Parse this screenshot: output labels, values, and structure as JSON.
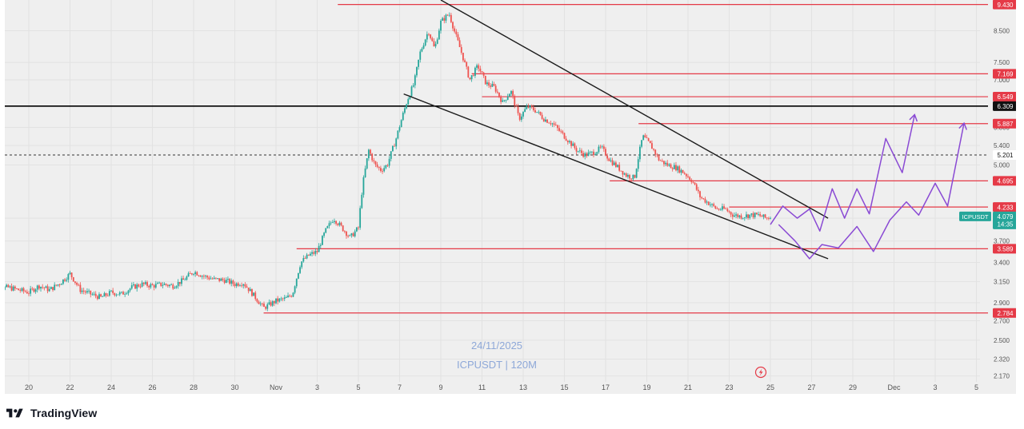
{
  "brand": {
    "name": "TradingView",
    "logo_icon": "tradingview-logo-icon"
  },
  "colors": {
    "background": "#efefef",
    "grid": "#e2e2e2",
    "candle_up": "#26a69a",
    "candle_down": "#ef5350",
    "level_line": "#e53a47",
    "wedge_line": "#1c1c1c",
    "projection": "#8a4ad4",
    "watermark": "#8ea8d8",
    "axis_text": "#555555",
    "current_price": "#26a69a"
  },
  "chart_data": {
    "type": "candlestick",
    "symbol": "ICPUSDT",
    "interval": "120M",
    "watermark_date": "24/11/2025",
    "watermark_symbol": "ICPUSDT | 120M",
    "y_scale": "log",
    "ylim": [
      2.12,
      9.6
    ],
    "y_ticks": [
      "2.170",
      "2.320",
      "2.500",
      "2.700",
      "2.900",
      "3.150",
      "3.400",
      "3.700",
      "4.050",
      "5.000",
      "5.400",
      "5.800",
      "7.000",
      "7.500",
      "8.500"
    ],
    "x_ticks": [
      "20",
      "22",
      "24",
      "26",
      "28",
      "30",
      "Nov",
      "3",
      "5",
      "7",
      "9",
      "11",
      "13",
      "15",
      "17",
      "19",
      "21",
      "23",
      "25",
      "27",
      "29",
      "Dec",
      "3",
      "5"
    ],
    "x_tick_dates": [
      -12,
      -10,
      -8,
      -6,
      -4,
      -2,
      0,
      2,
      4,
      6,
      8,
      10,
      12,
      14,
      16,
      18,
      20,
      22,
      24,
      26,
      28,
      30,
      32,
      34
    ],
    "x_axis_note": "dates counted in days from Nov 1",
    "price_path": [
      [
        -14.0,
        3.05
      ],
      [
        -13.0,
        3.08
      ],
      [
        -12.0,
        3.02
      ],
      [
        -11.5,
        3.1
      ],
      [
        -11.0,
        3.05
      ],
      [
        -10.5,
        3.13
      ],
      [
        -10.0,
        3.25
      ],
      [
        -9.5,
        3.05
      ],
      [
        -9.0,
        3.0
      ],
      [
        -8.5,
        2.96
      ],
      [
        -8.0,
        3.02
      ],
      [
        -7.5,
        3.0
      ],
      [
        -7.0,
        3.08
      ],
      [
        -6.5,
        3.12
      ],
      [
        -6.0,
        3.1
      ],
      [
        -5.5,
        3.12
      ],
      [
        -5.0,
        3.1
      ],
      [
        -4.5,
        3.17
      ],
      [
        -4.0,
        3.28
      ],
      [
        -3.5,
        3.22
      ],
      [
        -3.0,
        3.18
      ],
      [
        -2.5,
        3.17
      ],
      [
        -2.0,
        3.12
      ],
      [
        -1.6,
        3.14
      ],
      [
        -1.2,
        3.02
      ],
      [
        -0.6,
        2.84
      ],
      [
        0.0,
        2.92
      ],
      [
        0.5,
        2.95
      ],
      [
        0.8,
        3.0
      ],
      [
        1.2,
        3.4
      ],
      [
        1.6,
        3.5
      ],
      [
        2.0,
        3.55
      ],
      [
        2.4,
        3.85
      ],
      [
        2.8,
        4.05
      ],
      [
        3.2,
        3.9
      ],
      [
        3.6,
        3.75
      ],
      [
        4.0,
        3.9
      ],
      [
        4.2,
        4.6
      ],
      [
        4.5,
        5.3
      ],
      [
        4.8,
        5.0
      ],
      [
        5.1,
        4.9
      ],
      [
        5.4,
        5.0
      ],
      [
        5.8,
        5.5
      ],
      [
        6.1,
        6.0
      ],
      [
        6.4,
        6.5
      ],
      [
        6.7,
        6.9
      ],
      [
        7.0,
        7.8
      ],
      [
        7.4,
        8.5
      ],
      [
        7.7,
        7.9
      ],
      [
        8.0,
        8.8
      ],
      [
        8.4,
        9.1
      ],
      [
        8.7,
        8.4
      ],
      [
        9.0,
        7.8
      ],
      [
        9.4,
        7.0
      ],
      [
        9.8,
        7.4
      ],
      [
        10.2,
        6.9
      ],
      [
        10.6,
        6.8
      ],
      [
        11.0,
        6.4
      ],
      [
        11.4,
        6.7
      ],
      [
        11.8,
        6.0
      ],
      [
        12.2,
        6.3
      ],
      [
        12.6,
        6.2
      ],
      [
        13.0,
        6.0
      ],
      [
        13.4,
        5.9
      ],
      [
        13.8,
        5.7
      ],
      [
        14.2,
        5.5
      ],
      [
        14.6,
        5.3
      ],
      [
        15.0,
        5.2
      ],
      [
        15.4,
        5.25
      ],
      [
        15.8,
        5.35
      ],
      [
        16.2,
        5.1
      ],
      [
        16.6,
        4.95
      ],
      [
        17.0,
        4.8
      ],
      [
        17.4,
        4.75
      ],
      [
        17.8,
        5.6
      ],
      [
        18.2,
        5.4
      ],
      [
        18.6,
        5.1
      ],
      [
        19.0,
        5.0
      ],
      [
        19.4,
        4.95
      ],
      [
        19.8,
        4.85
      ],
      [
        20.2,
        4.7
      ],
      [
        20.6,
        4.4
      ],
      [
        21.0,
        4.3
      ],
      [
        21.4,
        4.2
      ],
      [
        21.8,
        4.2
      ],
      [
        22.2,
        4.1
      ],
      [
        22.6,
        4.08
      ],
      [
        23.0,
        4.1
      ],
      [
        23.4,
        4.1
      ],
      [
        23.8,
        4.05
      ],
      [
        24.0,
        4.07
      ]
    ],
    "last_price": "4.079",
    "last_price_timer": "14:35",
    "last_price_label": "ICPUSDT",
    "levels": [
      {
        "price": 9.43,
        "label": "9.430",
        "start": 3.0,
        "type": "resistance"
      },
      {
        "price": 7.169,
        "label": "7.169",
        "start": 9.5,
        "type": "resistance"
      },
      {
        "price": 6.549,
        "label": "6.549",
        "start": 10.0,
        "type": "resistance"
      },
      {
        "price": 6.309,
        "label": "6.309",
        "start": -14.0,
        "type": "black"
      },
      {
        "price": 5.887,
        "label": "5.887",
        "start": 17.6,
        "type": "resistance"
      },
      {
        "price": 5.201,
        "label": "5.201",
        "start": -14.0,
        "type": "dashed"
      },
      {
        "price": 4.695,
        "label": "4.695",
        "start": 16.2,
        "type": "resistance"
      },
      {
        "price": 4.233,
        "label": "4.233",
        "start": 22.0,
        "type": "resistance"
      },
      {
        "price": 3.589,
        "label": "3.589",
        "start": 1.0,
        "type": "support"
      },
      {
        "price": 2.784,
        "label": "2.784",
        "start": -0.6,
        "type": "support"
      }
    ],
    "extra_axis_labels": [
      {
        "price": 4.05,
        "label": "4.050"
      }
    ],
    "wedge": {
      "upper": [
        [
          8.0,
          9.6
        ],
        [
          26.8,
          4.05
        ]
      ],
      "lower": [
        [
          6.2,
          6.62
        ],
        [
          26.8,
          3.45
        ]
      ]
    },
    "projection_paths": [
      [
        [
          24.0,
          3.95
        ],
        [
          24.6,
          4.25
        ],
        [
          25.3,
          4.05
        ],
        [
          25.9,
          4.2
        ],
        [
          26.4,
          3.85
        ],
        [
          27.0,
          4.55
        ],
        [
          27.6,
          4.05
        ],
        [
          28.2,
          4.55
        ],
        [
          28.8,
          4.12
        ],
        [
          29.6,
          5.55
        ],
        [
          30.4,
          4.85
        ],
        [
          31.0,
          6.1
        ]
      ],
      [
        [
          24.4,
          3.95
        ],
        [
          25.2,
          3.7
        ],
        [
          25.9,
          3.45
        ],
        [
          26.5,
          3.65
        ],
        [
          27.3,
          3.6
        ],
        [
          28.2,
          3.92
        ],
        [
          29.0,
          3.55
        ],
        [
          29.8,
          4.02
        ],
        [
          30.6,
          4.32
        ],
        [
          31.2,
          4.1
        ],
        [
          32.0,
          4.65
        ],
        [
          32.6,
          4.25
        ],
        [
          33.4,
          5.9
        ]
      ]
    ],
    "projection_arrow_tips": [
      [
        31.0,
        6.1
      ],
      [
        33.4,
        5.9
      ]
    ],
    "legend": "none",
    "grid": true
  }
}
